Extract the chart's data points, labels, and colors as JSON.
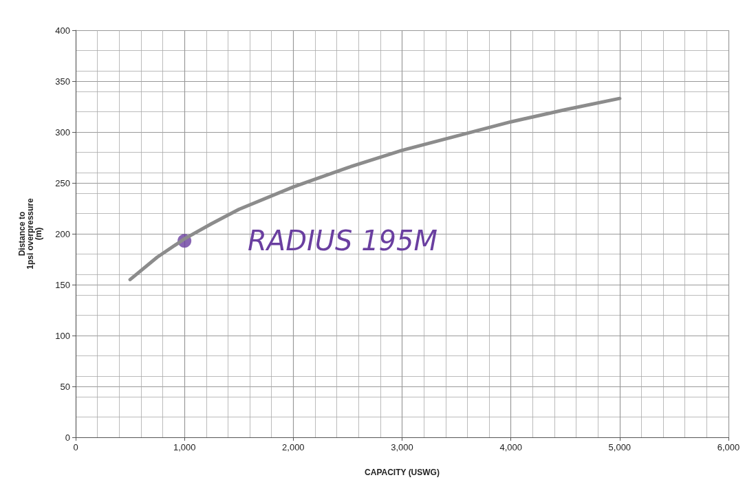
{
  "chart_data": {
    "type": "line",
    "xlabel": "CAPACITY (USWG)",
    "ylabel": "Distance to\n1psi overpressure\n(m)",
    "series": [
      {
        "color": "#8c8c8c",
        "x": [
          500,
          750,
          1000,
          1250,
          1500,
          2000,
          2500,
          3000,
          3500,
          4000,
          4500,
          5000
        ],
        "values": [
          155,
          177,
          195,
          210,
          224,
          246,
          265,
          282,
          296,
          310,
          322,
          333
        ]
      },
      {
        "type": "scatter",
        "color": "#6a3fa0",
        "x": [
          1000
        ],
        "values": [
          193
        ]
      }
    ],
    "xlim": [
      0,
      6000
    ],
    "xticks": [
      0,
      {
        "value": 1000,
        "label": "1,000"
      },
      {
        "value": 2000,
        "label": "2,000"
      },
      {
        "value": 3000,
        "label": "3,000"
      },
      {
        "value": 4000,
        "label": "4,000"
      },
      {
        "value": 5000,
        "label": "5,000"
      },
      {
        "value": 6000,
        "label": "6,000"
      }
    ],
    "ylim": [
      0,
      400
    ],
    "yticks": [
      0,
      50,
      100,
      150,
      200,
      250,
      300,
      350,
      400
    ],
    "grid": true,
    "annotations": [
      "RADIUS 195M"
    ]
  }
}
